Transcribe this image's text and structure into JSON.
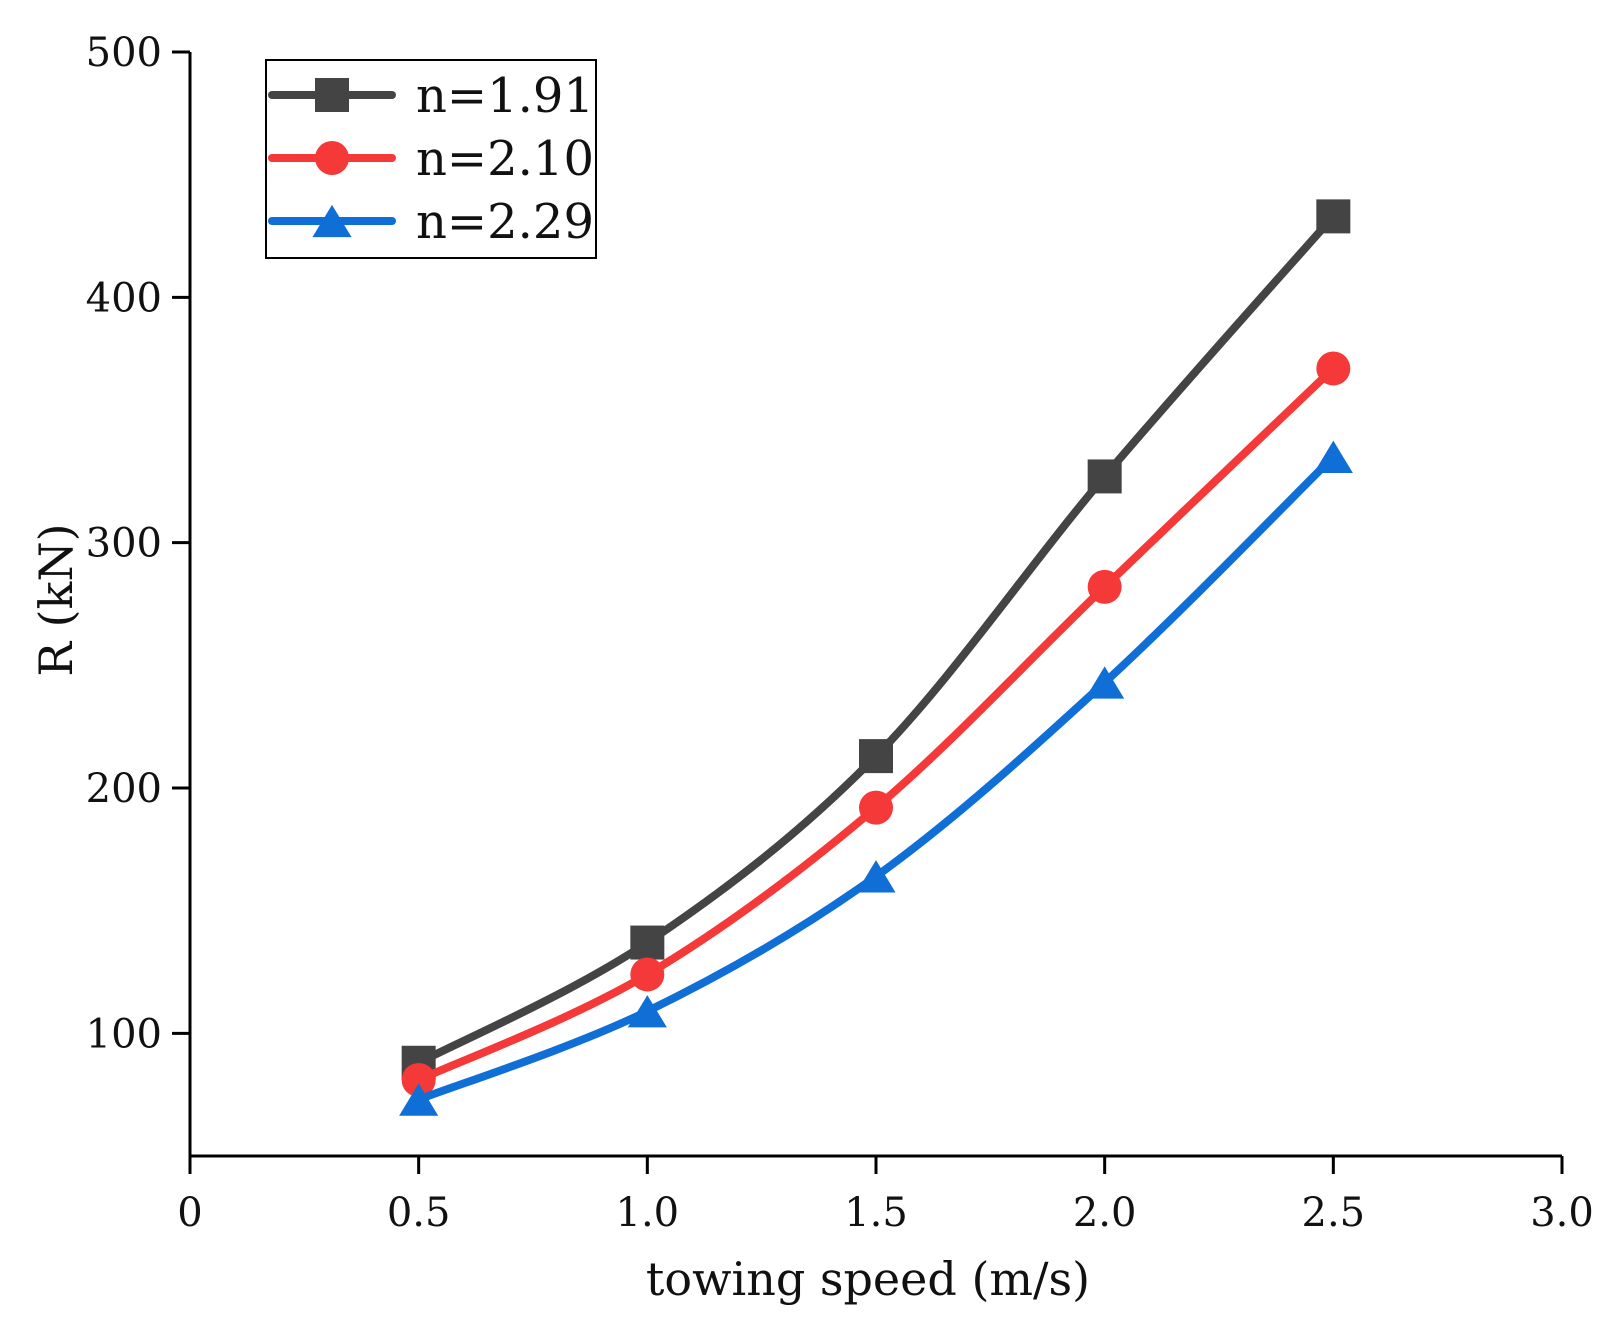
{
  "chart_data": {
    "type": "line",
    "title": "",
    "xlabel": "towing speed (m/s)",
    "ylabel": "R (kN)",
    "xlim": [
      0,
      3.0
    ],
    "ylim": [
      50,
      500
    ],
    "xticks": [
      0,
      0.5,
      1.0,
      1.5,
      2.0,
      2.5,
      3.0
    ],
    "xtick_labels": [
      "0",
      "0.5",
      "1.0",
      "1.5",
      "2.0",
      "2.5",
      "3.0"
    ],
    "yticks": [
      100,
      200,
      300,
      400,
      500
    ],
    "ytick_labels": [
      "100",
      "200",
      "300",
      "400",
      "500"
    ],
    "grid": false,
    "legend_position": "top-left",
    "x": [
      0.5,
      1.0,
      1.5,
      2.0,
      2.5
    ],
    "series": [
      {
        "name": "n=1.91",
        "marker": "square",
        "color": "#444444",
        "values": [
          88,
          137,
          213,
          327,
          433
        ]
      },
      {
        "name": "n=2.10",
        "marker": "circle",
        "color": "#f53838",
        "values": [
          81,
          124,
          192,
          282,
          371
        ]
      },
      {
        "name": "n=2.29",
        "marker": "triangle",
        "color": "#0f6fd6",
        "values": [
          73,
          109,
          164,
          243,
          335
        ]
      }
    ]
  }
}
